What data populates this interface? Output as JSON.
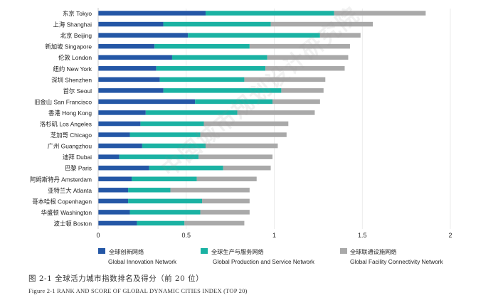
{
  "chart_data": {
    "type": "bar",
    "orientation": "horizontal",
    "stacked": true,
    "categories": [
      "东京 Tokyo",
      "上海 Shanghai",
      "北京 Beijing",
      "新加坡 Singapore",
      "伦敦 London",
      "纽约 New York",
      "深圳 Shenzhen",
      "首尔 Seoul",
      "旧金山 San Francisco",
      "香港 Hong Kong",
      "洛杉矶 Los Angeles",
      "芝加哥 Chicago",
      "广州 Guangzhou",
      "迪拜 Dubai",
      "巴黎 Paris",
      "阿姆斯特丹 Amsterdam",
      "亚特兰大 Atlanta",
      "哥本哈根 Copenhagen",
      "华盛顿 Washington",
      "波士顿 Boston"
    ],
    "series": [
      {
        "name": "全球创新网络",
        "name_en": "Global Innovation Network",
        "color": "#2457a6",
        "values": [
          0.61,
          0.37,
          0.51,
          0.32,
          0.42,
          0.33,
          0.35,
          0.37,
          0.55,
          0.27,
          0.24,
          0.18,
          0.25,
          0.12,
          0.29,
          0.19,
          0.17,
          0.17,
          0.18,
          0.22
        ]
      },
      {
        "name": "全球生产与服务网络",
        "name_en": "Global Production and Service Network",
        "color": "#1ab2a3",
        "values": [
          0.73,
          0.61,
          0.75,
          0.54,
          0.54,
          0.62,
          0.48,
          0.67,
          0.44,
          0.52,
          0.36,
          0.4,
          0.36,
          0.45,
          0.42,
          0.37,
          0.24,
          0.42,
          0.4,
          0.27
        ]
      },
      {
        "name": "全球联通设施网络",
        "name_en": "Global Facility Connectivity Network",
        "color": "#a9a9a9",
        "values": [
          0.52,
          0.58,
          0.23,
          0.57,
          0.46,
          0.45,
          0.46,
          0.24,
          0.27,
          0.44,
          0.48,
          0.49,
          0.41,
          0.42,
          0.27,
          0.34,
          0.45,
          0.27,
          0.28,
          0.34
        ]
      }
    ],
    "xlim": [
      0,
      2
    ],
    "xticks": [
      "0",
      "0.5",
      "1",
      "1.5",
      "2"
    ],
    "xtick_values": [
      0,
      0.5,
      1,
      1.5,
      2
    ],
    "watermark": "中国城市规划设计研究院",
    "caption_cn": "图 2-1 全球活力城市指数排名及得分（前 20 位）",
    "caption_en": "Figure 2-1 RANK AND SCORE OF GLOBAL DYNAMIC CITIES INDEX (TOP 20)"
  }
}
